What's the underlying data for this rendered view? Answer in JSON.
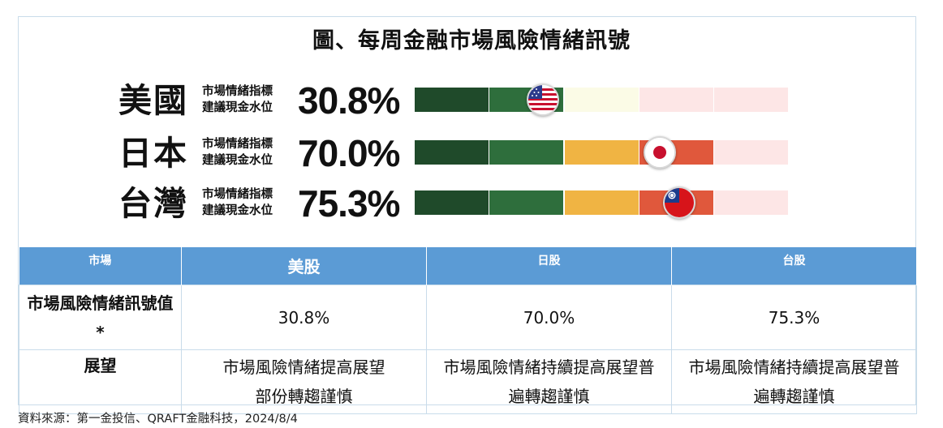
{
  "title": "圖、每周金融市場風險情緒訊號",
  "gauge": {
    "sublabel_line1": "市場情緒指標",
    "sublabel_line2": "建議現金水位",
    "rows": [
      {
        "country": "美國",
        "percent": "30.8%",
        "value": 30.8,
        "flag": "us-flag-icon",
        "segment_colors": [
          "#1f4a2a",
          "#2e6e3c",
          "#fbfbe6",
          "#fde6e6",
          "#fde6e6"
        ]
      },
      {
        "country": "日本",
        "percent": "70.0%",
        "value": 70.0,
        "flag": "japan-flag-icon",
        "segment_colors": [
          "#1f4a2a",
          "#2e6e3c",
          "#f0b443",
          "#e0583c",
          "#fde6e6"
        ]
      },
      {
        "country": "台灣",
        "percent": "75.3%",
        "value": 75.3,
        "flag": "taiwan-flag-icon",
        "segment_colors": [
          "#1f4a2a",
          "#2e6e3c",
          "#f0b443",
          "#e0583c",
          "#fde6e6"
        ]
      }
    ]
  },
  "table": {
    "headers": [
      "市場",
      "美股",
      "日股",
      "台股"
    ],
    "rows": [
      {
        "label": "市場風險情緒訊號值*",
        "values": [
          "30.8%",
          "70.0%",
          "75.3%"
        ]
      },
      {
        "label": "展望",
        "values": [
          "市場風險情緒提高展望部份轉趨謹慎",
          "市場風險情緒持續提高展望普遍轉趨謹慎",
          "市場風險情緒持續提高展望普遍轉趨謹慎"
        ]
      }
    ]
  },
  "colors": {
    "header_bg": "#5b9bd5",
    "border": "#c9dcea"
  },
  "source": "資料來源：第一金投信、QRAFT金融科技，2024/8/4"
}
